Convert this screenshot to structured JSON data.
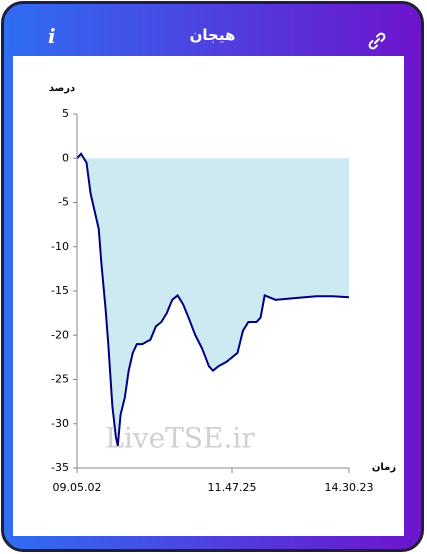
{
  "header": {
    "title": "هیجان",
    "info_icon": "i"
  },
  "chart_data": {
    "type": "line",
    "ylabel": "درصد",
    "xlabel": "زمان",
    "watermark": "LiveTSE.ir",
    "x": [
      0,
      1.5,
      2.5,
      3.5,
      5,
      6.5,
      8,
      9,
      10.5,
      11.5,
      13,
      14.3,
      15,
      16,
      17.6,
      19,
      20.5,
      22,
      24,
      27,
      29,
      31,
      33,
      35,
      37,
      39,
      41,
      43.5,
      46,
      48.5,
      50,
      52,
      55,
      59,
      61,
      63,
      66,
      67.5,
      69,
      73,
      80,
      88,
      94,
      100
    ],
    "series": [
      {
        "color": "#000080",
        "fill": "#cdeaf3",
        "values": [
          0,
          0.5,
          0,
          -0.5,
          -4,
          -6,
          -8,
          -12,
          -17,
          -21,
          -28,
          -31.5,
          -32.5,
          -29,
          -27,
          -24,
          -22,
          -21,
          -21,
          -20.5,
          -19,
          -18.5,
          -17.5,
          -16,
          -15.5,
          -16.5,
          -18,
          -20,
          -21.5,
          -23.5,
          -24,
          -23.5,
          -23,
          -22,
          -19.5,
          -18.5,
          -18.5,
          -18,
          -15.5,
          -16,
          -15.8,
          -15.6,
          -15.6,
          -15.7
        ]
      }
    ],
    "xlim": [
      0,
      100
    ],
    "xticks": [
      {
        "value": 0,
        "label": "09.05.02"
      },
      {
        "value": 57,
        "label": "11.47.25"
      },
      {
        "value": 100,
        "label": "14.30.23"
      }
    ],
    "ylim": [
      -35,
      5
    ],
    "yticks": [
      5,
      0,
      -5,
      -10,
      -15,
      -20,
      -25,
      -30,
      -35
    ]
  }
}
